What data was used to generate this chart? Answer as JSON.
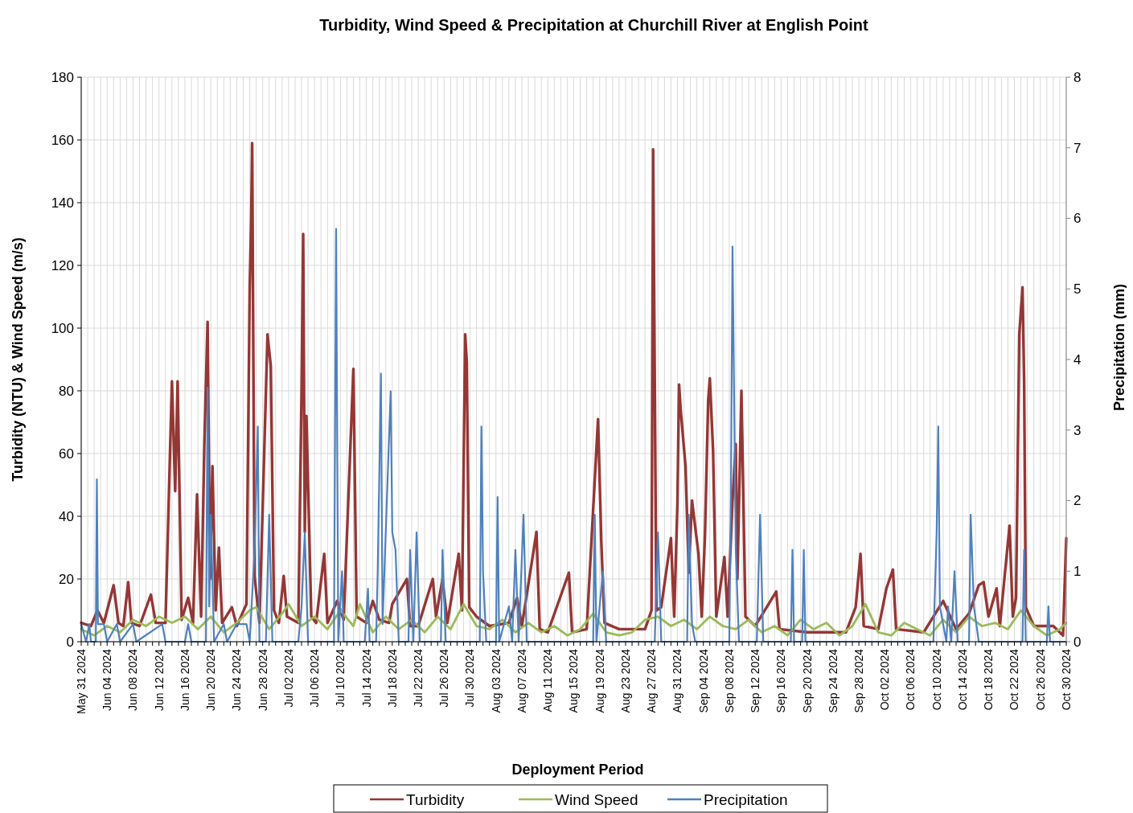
{
  "chart_data": {
    "type": "line",
    "title": "Turbidity, Wind Speed & Precipitation at Churchill River at English Point",
    "xlabel": "Deployment Period",
    "ylabel": "Turbidity (NTU) & Wind Speed (m/s)",
    "y2label": "Precipitation (mm)",
    "xlim": [
      "2024-05-31",
      "2024-10-30"
    ],
    "ylim": [
      0,
      180
    ],
    "yticks": [
      0,
      20,
      40,
      60,
      80,
      100,
      120,
      140,
      160,
      180
    ],
    "y2lim": [
      0,
      8
    ],
    "y2ticks": [
      0,
      1,
      2,
      3,
      4,
      5,
      6,
      7,
      8
    ],
    "grid": true,
    "legend": "bottom",
    "marker": "none",
    "line_style": "solid",
    "xticks": [
      {
        "value": "2024-05-31",
        "label": "May 31 2024"
      },
      {
        "value": "2024-06-01",
        "label": null
      },
      {
        "value": "2024-06-02",
        "label": null
      },
      {
        "value": "2024-06-03",
        "label": null
      },
      {
        "value": "2024-06-04",
        "label": "Jun 04 2024"
      },
      {
        "value": "2024-06-05",
        "label": null
      },
      {
        "value": "2024-06-06",
        "label": null
      },
      {
        "value": "2024-06-07",
        "label": null
      },
      {
        "value": "2024-06-08",
        "label": "Jun 08 2024"
      },
      {
        "value": "2024-06-09",
        "label": null
      },
      {
        "value": "2024-06-10",
        "label": null
      },
      {
        "value": "2024-06-11",
        "label": null
      },
      {
        "value": "2024-06-12",
        "label": "Jun 12 2024"
      },
      {
        "value": "2024-06-13",
        "label": null
      },
      {
        "value": "2024-06-14",
        "label": null
      },
      {
        "value": "2024-06-15",
        "label": null
      },
      {
        "value": "2024-06-16",
        "label": "Jun 16 2024"
      },
      {
        "value": "2024-06-17",
        "label": null
      },
      {
        "value": "2024-06-18",
        "label": null
      },
      {
        "value": "2024-06-19",
        "label": null
      },
      {
        "value": "2024-06-20",
        "label": "Jun 20 2024"
      },
      {
        "value": "2024-06-21",
        "label": null
      },
      {
        "value": "2024-06-22",
        "label": null
      },
      {
        "value": "2024-06-23",
        "label": null
      },
      {
        "value": "2024-06-24",
        "label": "Jun 24 2024"
      },
      {
        "value": "2024-06-25",
        "label": null
      },
      {
        "value": "2024-06-26",
        "label": null
      },
      {
        "value": "2024-06-27",
        "label": null
      },
      {
        "value": "2024-06-28",
        "label": "Jun 28 2024"
      },
      {
        "value": "2024-06-29",
        "label": null
      },
      {
        "value": "2024-06-30",
        "label": null
      },
      {
        "value": "2024-07-01",
        "label": null
      },
      {
        "value": "2024-07-02",
        "label": "Jul 02 2024"
      },
      {
        "value": "2024-07-03",
        "label": null
      },
      {
        "value": "2024-07-04",
        "label": null
      },
      {
        "value": "2024-07-05",
        "label": null
      },
      {
        "value": "2024-07-06",
        "label": "Jul 06 2024"
      },
      {
        "value": "2024-07-07",
        "label": null
      },
      {
        "value": "2024-07-08",
        "label": null
      },
      {
        "value": "2024-07-09",
        "label": null
      },
      {
        "value": "2024-07-10",
        "label": "Jul 10 2024"
      },
      {
        "value": "2024-07-11",
        "label": null
      },
      {
        "value": "2024-07-12",
        "label": null
      },
      {
        "value": "2024-07-13",
        "label": null
      },
      {
        "value": "2024-07-14",
        "label": "Jul 14 2024"
      },
      {
        "value": "2024-07-15",
        "label": null
      },
      {
        "value": "2024-07-16",
        "label": null
      },
      {
        "value": "2024-07-17",
        "label": null
      },
      {
        "value": "2024-07-18",
        "label": "Jul 18 2024"
      },
      {
        "value": "2024-07-19",
        "label": null
      },
      {
        "value": "2024-07-20",
        "label": null
      },
      {
        "value": "2024-07-21",
        "label": null
      },
      {
        "value": "2024-07-22",
        "label": "Jul 22 2024"
      },
      {
        "value": "2024-07-23",
        "label": null
      },
      {
        "value": "2024-07-24",
        "label": null
      },
      {
        "value": "2024-07-25",
        "label": null
      },
      {
        "value": "2024-07-26",
        "label": "Jul 26 2024"
      },
      {
        "value": "2024-07-27",
        "label": null
      },
      {
        "value": "2024-07-28",
        "label": null
      },
      {
        "value": "2024-07-29",
        "label": null
      },
      {
        "value": "2024-07-30",
        "label": "Jul 30 2024"
      },
      {
        "value": "2024-07-31",
        "label": null
      },
      {
        "value": "2024-08-01",
        "label": null
      },
      {
        "value": "2024-08-02",
        "label": null
      },
      {
        "value": "2024-08-03",
        "label": "Aug 03 2024"
      },
      {
        "value": "2024-08-04",
        "label": null
      },
      {
        "value": "2024-08-05",
        "label": null
      },
      {
        "value": "2024-08-06",
        "label": null
      },
      {
        "value": "2024-08-07",
        "label": "Aug 07 2024"
      },
      {
        "value": "2024-08-08",
        "label": null
      },
      {
        "value": "2024-08-09",
        "label": null
      },
      {
        "value": "2024-08-10",
        "label": null
      },
      {
        "value": "2024-08-11",
        "label": "Aug 11 2024"
      },
      {
        "value": "2024-08-12",
        "label": null
      },
      {
        "value": "2024-08-13",
        "label": null
      },
      {
        "value": "2024-08-14",
        "label": null
      },
      {
        "value": "2024-08-15",
        "label": "Aug 15 2024"
      },
      {
        "value": "2024-08-16",
        "label": null
      },
      {
        "value": "2024-08-17",
        "label": null
      },
      {
        "value": "2024-08-18",
        "label": null
      },
      {
        "value": "2024-08-19",
        "label": "Aug 19 2024"
      },
      {
        "value": "2024-08-20",
        "label": null
      },
      {
        "value": "2024-08-21",
        "label": null
      },
      {
        "value": "2024-08-22",
        "label": null
      },
      {
        "value": "2024-08-23",
        "label": "Aug 23 2024"
      },
      {
        "value": "2024-08-24",
        "label": null
      },
      {
        "value": "2024-08-25",
        "label": null
      },
      {
        "value": "2024-08-26",
        "label": null
      },
      {
        "value": "2024-08-27",
        "label": "Aug 27 2024"
      },
      {
        "value": "2024-08-28",
        "label": null
      },
      {
        "value": "2024-08-29",
        "label": null
      },
      {
        "value": "2024-08-30",
        "label": null
      },
      {
        "value": "2024-08-31",
        "label": "Aug 31 2024"
      },
      {
        "value": "2024-09-01",
        "label": null
      },
      {
        "value": "2024-09-02",
        "label": null
      },
      {
        "value": "2024-09-03",
        "label": null
      },
      {
        "value": "2024-09-04",
        "label": "Sep 04 2024"
      },
      {
        "value": "2024-09-05",
        "label": null
      },
      {
        "value": "2024-09-06",
        "label": null
      },
      {
        "value": "2024-09-07",
        "label": null
      },
      {
        "value": "2024-09-08",
        "label": "Sep 08 2024"
      },
      {
        "value": "2024-09-09",
        "label": null
      },
      {
        "value": "2024-09-10",
        "label": null
      },
      {
        "value": "2024-09-11",
        "label": null
      },
      {
        "value": "2024-09-12",
        "label": "Sep 12 2024"
      },
      {
        "value": "2024-09-13",
        "label": null
      },
      {
        "value": "2024-09-14",
        "label": null
      },
      {
        "value": "2024-09-15",
        "label": null
      },
      {
        "value": "2024-09-16",
        "label": "Sep 16 2024"
      },
      {
        "value": "2024-09-17",
        "label": null
      },
      {
        "value": "2024-09-18",
        "label": null
      },
      {
        "value": "2024-09-19",
        "label": null
      },
      {
        "value": "2024-09-20",
        "label": "Sep 20 2024"
      },
      {
        "value": "2024-09-21",
        "label": null
      },
      {
        "value": "2024-09-22",
        "label": null
      },
      {
        "value": "2024-09-23",
        "label": null
      },
      {
        "value": "2024-09-24",
        "label": "Sep 24 2024"
      },
      {
        "value": "2024-09-25",
        "label": null
      },
      {
        "value": "2024-09-26",
        "label": null
      },
      {
        "value": "2024-09-27",
        "label": null
      },
      {
        "value": "2024-09-28",
        "label": "Sep 28 2024"
      },
      {
        "value": "2024-09-29",
        "label": null
      },
      {
        "value": "2024-09-30",
        "label": null
      },
      {
        "value": "2024-10-01",
        "label": null
      },
      {
        "value": "2024-10-02",
        "label": "Oct 02 2024"
      },
      {
        "value": "2024-10-03",
        "label": null
      },
      {
        "value": "2024-10-04",
        "label": null
      },
      {
        "value": "2024-10-05",
        "label": null
      },
      {
        "value": "2024-10-06",
        "label": "Oct 06 2024"
      },
      {
        "value": "2024-10-07",
        "label": null
      },
      {
        "value": "2024-10-08",
        "label": null
      },
      {
        "value": "2024-10-09",
        "label": null
      },
      {
        "value": "2024-10-10",
        "label": "Oct 10 2024"
      },
      {
        "value": "2024-10-11",
        "label": null
      },
      {
        "value": "2024-10-12",
        "label": null
      },
      {
        "value": "2024-10-13",
        "label": null
      },
      {
        "value": "2024-10-14",
        "label": "Oct 14 2024"
      },
      {
        "value": "2024-10-15",
        "label": null
      },
      {
        "value": "2024-10-16",
        "label": null
      },
      {
        "value": "2024-10-17",
        "label": null
      },
      {
        "value": "2024-10-18",
        "label": "Oct 18 2024"
      },
      {
        "value": "2024-10-19",
        "label": null
      },
      {
        "value": "2024-10-20",
        "label": null
      },
      {
        "value": "2024-10-21",
        "label": null
      },
      {
        "value": "2024-10-22",
        "label": "Oct 22 2024"
      },
      {
        "value": "2024-10-23",
        "label": null
      },
      {
        "value": "2024-10-24",
        "label": null
      },
      {
        "value": "2024-10-25",
        "label": null
      },
      {
        "value": "2024-10-26",
        "label": "Oct 26 2024"
      },
      {
        "value": "2024-10-27",
        "label": null
      },
      {
        "value": "2024-10-28",
        "label": null
      },
      {
        "value": "2024-10-29",
        "label": null
      },
      {
        "value": "2024-10-30",
        "label": "Oct 30 2024"
      }
    ],
    "series": [
      {
        "name": "Turbidity",
        "color": "#953735",
        "x": [
          "2024-05-31T00:00",
          "2024-06-01T12:00",
          "2024-06-02T12:00",
          "2024-06-03T12:00",
          "2024-06-05T00:00",
          "2024-06-05T18:00",
          "2024-06-06T12:00",
          "2024-06-07T06:00",
          "2024-06-07T18:00",
          "2024-06-09T00:00",
          "2024-06-10T18:00",
          "2024-06-11T12:00",
          "2024-06-13T00:00",
          "2024-06-14T00:00",
          "2024-06-14T12:00",
          "2024-06-14T21:00",
          "2024-06-15T12:00",
          "2024-06-16T12:00",
          "2024-06-17T06:00",
          "2024-06-17T21:00",
          "2024-06-18T12:00",
          "2024-06-19T00:00",
          "2024-06-19T12:00",
          "2024-06-19T21:00",
          "2024-06-20T06:00",
          "2024-06-20T18:00",
          "2024-06-21T06:00",
          "2024-06-21T18:00",
          "2024-06-23T06:00",
          "2024-06-24T00:00",
          "2024-06-25T12:00",
          "2024-06-26T00:00",
          "2024-06-26T06:00",
          "2024-06-26T09:00",
          "2024-06-26T18:00",
          "2024-06-27T12:00",
          "2024-06-28T18:00",
          "2024-06-29T06:00",
          "2024-06-29T18:00",
          "2024-06-30T12:00",
          "2024-07-01T06:00",
          "2024-07-01T18:00",
          "2024-07-03T12:00",
          "2024-07-04T00:00",
          "2024-07-04T06:00",
          "2024-07-04T12:00",
          "2024-07-04T18:00",
          "2024-07-05T12:00",
          "2024-07-06T06:00",
          "2024-07-07T12:00",
          "2024-07-08T00:00",
          "2024-07-09T12:00",
          "2024-07-10T12:00",
          "2024-07-12T00:00",
          "2024-07-12T12:00",
          "2024-07-14T00:00",
          "2024-07-15T00:00",
          "2024-07-16T00:00",
          "2024-07-17T12:00",
          "2024-07-18T00:00",
          "2024-07-20T06:00",
          "2024-07-20T18:00",
          "2024-07-22T00:00",
          "2024-07-24T06:00",
          "2024-07-24T18:00",
          "2024-07-25T18:00",
          "2024-07-26T12:00",
          "2024-07-28T06:00",
          "2024-07-28T18:00",
          "2024-07-29T06:00",
          "2024-07-29T12:00",
          "2024-07-29T21:00",
          "2024-07-31T00:00",
          "2024-08-02T00:00",
          "2024-08-05T00:00",
          "2024-08-06T06:00",
          "2024-08-07T00:00",
          "2024-08-09T06:00",
          "2024-08-09T18:00",
          "2024-08-11T00:00",
          "2024-08-14T06:00",
          "2024-08-14T18:00",
          "2024-08-17T00:00",
          "2024-08-18T18:00",
          "2024-08-19T06:00",
          "2024-08-19T18:00",
          "2024-08-22T00:00",
          "2024-08-26T00:00",
          "2024-08-27T00:00",
          "2024-08-27T06:00",
          "2024-08-27T18:00",
          "2024-08-28T12:00",
          "2024-08-30T00:00",
          "2024-08-30T12:00",
          "2024-08-31T00:00",
          "2024-08-31T06:00",
          "2024-08-31T12:00",
          "2024-09-01T06:00",
          "2024-09-01T18:00",
          "2024-09-02T06:00",
          "2024-09-03T06:00",
          "2024-09-03T18:00",
          "2024-09-04T06:00",
          "2024-09-04T18:00",
          "2024-09-05T00:00",
          "2024-09-05T12:00",
          "2024-09-06T00:00",
          "2024-09-07T06:00",
          "2024-09-07T18:00",
          "2024-09-08T12:00",
          "2024-09-09T00:00",
          "2024-09-09T06:00",
          "2024-09-09T21:00",
          "2024-09-10T12:00",
          "2024-09-12T00:00",
          "2024-09-15T06:00",
          "2024-09-15T18:00",
          "2024-09-20T00:00",
          "2024-09-26T00:00",
          "2024-09-27T12:00",
          "2024-09-28T06:00",
          "2024-09-28T18:00",
          "2024-10-01T00:00",
          "2024-10-02T06:00",
          "2024-10-03T06:00",
          "2024-10-03T18:00",
          "2024-10-08T00:00",
          "2024-10-11T00:00",
          "2024-10-13T00:00",
          "2024-10-15T00:00",
          "2024-10-16T12:00",
          "2024-10-17T06:00",
          "2024-10-18T00:00",
          "2024-10-19T06:00",
          "2024-10-19T18:00",
          "2024-10-21T06:00",
          "2024-10-21T18:00",
          "2024-10-22T06:00",
          "2024-10-22T18:00",
          "2024-10-23T06:00",
          "2024-10-23T12:00",
          "2024-10-23T18:00",
          "2024-10-25T00:00",
          "2024-10-28T00:00",
          "2024-10-29T12:00",
          "2024-10-30T00:00"
        ],
        "values": [
          6,
          5,
          10,
          6,
          18,
          6,
          5,
          19,
          6,
          5,
          15,
          6,
          6,
          83,
          48,
          83,
          7,
          14,
          6,
          47,
          8,
          63,
          102,
          20,
          56,
          10,
          30,
          6,
          11,
          5,
          12,
          113,
          137,
          159,
          21,
          6,
          98,
          88,
          10,
          6,
          21,
          8,
          6,
          80,
          130,
          35,
          72,
          8,
          6,
          28,
          6,
          13,
          7,
          87,
          8,
          6,
          13,
          7,
          6,
          12,
          20,
          5,
          5,
          20,
          8,
          20,
          6,
          28,
          10,
          98,
          89,
          11,
          8,
          5,
          6,
          14,
          5,
          35,
          4,
          3,
          22,
          3,
          4,
          71,
          32,
          6,
          4,
          4,
          10,
          157,
          10,
          11,
          33,
          8,
          44,
          82,
          74,
          56,
          22,
          45,
          28,
          8,
          34,
          77,
          84,
          61,
          8,
          27,
          8,
          45,
          63,
          20,
          80,
          8,
          5,
          16,
          4,
          3,
          3,
          11,
          28,
          5,
          4,
          17,
          23,
          4,
          3,
          13,
          4,
          9,
          18,
          19,
          8,
          17,
          5,
          37,
          8,
          14,
          98,
          113,
          83,
          11,
          5,
          5,
          2,
          33
        ]
      },
      {
        "name": "Wind Speed",
        "color": "#9bbb59",
        "x": [
          "2024-05-31",
          "2024-06-02",
          "2024-06-04",
          "2024-06-06",
          "2024-06-08",
          "2024-06-10",
          "2024-06-12",
          "2024-06-14",
          "2024-06-16",
          "2024-06-18",
          "2024-06-20",
          "2024-06-22",
          "2024-06-24",
          "2024-06-26",
          "2024-06-27",
          "2024-06-29",
          "2024-07-01",
          "2024-07-02",
          "2024-07-04",
          "2024-07-06",
          "2024-07-08",
          "2024-07-10",
          "2024-07-12",
          "2024-07-13",
          "2024-07-15",
          "2024-07-17",
          "2024-07-19",
          "2024-07-21",
          "2024-07-23",
          "2024-07-25",
          "2024-07-27",
          "2024-07-29",
          "2024-07-31",
          "2024-08-02",
          "2024-08-04",
          "2024-08-06",
          "2024-08-08",
          "2024-08-10",
          "2024-08-12",
          "2024-08-14",
          "2024-08-16",
          "2024-08-18",
          "2024-08-20",
          "2024-08-22",
          "2024-08-24",
          "2024-08-26",
          "2024-08-28",
          "2024-08-30",
          "2024-09-01",
          "2024-09-03",
          "2024-09-05",
          "2024-09-07",
          "2024-09-09",
          "2024-09-11",
          "2024-09-13",
          "2024-09-15",
          "2024-09-17",
          "2024-09-19",
          "2024-09-21",
          "2024-09-23",
          "2024-09-25",
          "2024-09-27",
          "2024-09-29",
          "2024-10-01",
          "2024-10-03",
          "2024-10-05",
          "2024-10-07",
          "2024-10-09",
          "2024-10-11",
          "2024-10-13",
          "2024-10-15",
          "2024-10-17",
          "2024-10-19",
          "2024-10-21",
          "2024-10-23",
          "2024-10-25",
          "2024-10-27",
          "2024-10-29",
          "2024-10-30"
        ],
        "values": [
          4,
          2,
          5,
          3,
          7,
          5,
          8,
          6,
          8,
          4,
          8,
          3,
          6,
          10,
          11,
          4,
          9,
          12,
          5,
          8,
          4,
          10,
          5,
          12,
          3,
          8,
          4,
          7,
          3,
          8,
          4,
          12,
          5,
          4,
          7,
          3,
          6,
          3,
          5,
          2,
          4,
          9,
          3,
          2,
          3,
          7,
          8,
          5,
          7,
          4,
          8,
          5,
          4,
          7,
          3,
          5,
          2,
          7,
          4,
          6,
          2,
          5,
          12,
          3,
          2,
          6,
          4,
          2,
          7,
          3,
          8,
          5,
          6,
          4,
          10,
          5,
          2,
          4,
          6
        ]
      },
      {
        "name": "Precipitation",
        "color": "#4f81bd",
        "axis": "y2",
        "x": [
          "2024-05-31T00:00",
          "2024-05-31T18:00",
          "2024-06-01T06:00",
          "2024-06-01T12:00",
          "2024-06-02T06:00",
          "2024-06-02T10:00",
          "2024-06-02T14:00",
          "2024-06-03T12:00",
          "2024-06-04T00:00",
          "2024-06-05T12:00",
          "2024-06-06T00:00",
          "2024-06-08T00:00",
          "2024-06-08T12:00",
          "2024-06-12T12:00",
          "2024-06-13T00:00",
          "2024-06-16T00:00",
          "2024-06-16T12:00",
          "2024-06-17T00:00",
          "2024-06-19T06:00",
          "2024-06-19T12:00",
          "2024-06-19T18:00",
          "2024-06-20T00:00",
          "2024-06-20T12:00",
          "2024-06-22T00:00",
          "2024-06-22T12:00",
          "2024-06-24T00:00",
          "2024-06-25T12:00",
          "2024-06-26T00:00",
          "2024-06-26T18:00",
          "2024-06-27T06:00",
          "2024-06-27T12:00",
          "2024-06-28T12:00",
          "2024-06-29T00:00",
          "2024-06-29T12:00",
          "2024-07-03T12:00",
          "2024-07-04T00:00",
          "2024-07-04T12:00",
          "2024-07-05T00:00",
          "2024-07-09T00:00",
          "2024-07-09T08:00",
          "2024-07-09T16:00",
          "2024-07-10T06:00",
          "2024-07-10T12:00",
          "2024-07-13T18:00",
          "2024-07-14T06:00",
          "2024-07-14T12:00",
          "2024-07-15T12:00",
          "2024-07-15T18:00",
          "2024-07-16T06:00",
          "2024-07-16T12:00",
          "2024-07-17T18:00",
          "2024-07-18T00:00",
          "2024-07-18T12:00",
          "2024-07-19T00:00",
          "2024-07-20T12:00",
          "2024-07-20T18:00",
          "2024-07-21T06:00",
          "2024-07-21T18:00",
          "2024-07-22T06:00",
          "2024-07-25T12:00",
          "2024-07-25T18:00",
          "2024-07-26T06:00",
          "2024-07-31T12:00",
          "2024-07-31T18:00",
          "2024-08-01T00:00",
          "2024-08-01T12:00",
          "2024-08-03T00:00",
          "2024-08-03T06:00",
          "2024-08-03T12:00",
          "2024-08-05T00:00",
          "2024-08-05T12:00",
          "2024-08-06T00:00",
          "2024-08-06T12:00",
          "2024-08-07T06:00",
          "2024-08-07T18:00",
          "2024-08-18T00:00",
          "2024-08-18T06:00",
          "2024-08-18T12:00",
          "2024-08-19T12:00",
          "2024-08-20T00:00",
          "2024-08-27T12:00",
          "2024-08-28T00:00",
          "2024-08-28T12:00",
          "2024-09-01T12:00",
          "2024-09-01T18:00",
          "2024-09-02T06:00",
          "2024-09-02T18:00",
          "2024-09-08T00:00",
          "2024-09-08T06:00",
          "2024-09-08T12:00",
          "2024-09-09T00:00",
          "2024-09-09T12:00",
          "2024-09-12T06:00",
          "2024-09-12T18:00",
          "2024-09-13T06:00",
          "2024-09-17T12:00",
          "2024-09-17T18:00",
          "2024-09-18T00:00",
          "2024-09-19T06:00",
          "2024-09-19T12:00",
          "2024-09-19T18:00",
          "2024-10-09T12:00",
          "2024-10-10T00:00",
          "2024-10-10T06:00",
          "2024-10-10T12:00",
          "2024-10-11T12:00",
          "2024-10-11T18:00",
          "2024-10-12T06:00",
          "2024-10-12T18:00",
          "2024-10-13T06:00",
          "2024-10-15T00:00",
          "2024-10-15T06:00",
          "2024-10-15T18:00",
          "2024-10-16T12:00",
          "2024-10-23T06:00",
          "2024-10-23T12:00",
          "2024-10-23T18:00",
          "2024-10-27T00:00",
          "2024-10-27T06:00",
          "2024-10-27T12:00",
          "2024-10-30T00:00"
        ],
        "values": [
          0.25,
          0,
          0.25,
          0,
          0,
          2.3,
          0.25,
          0.25,
          0,
          0.25,
          0,
          0.25,
          0,
          0.25,
          0,
          0,
          0.25,
          0,
          0,
          3.6,
          0.5,
          1.8,
          0,
          0.25,
          0,
          0.25,
          0.25,
          0,
          1.3,
          3.05,
          0,
          0,
          1.8,
          0,
          0,
          0.5,
          1.55,
          0,
          0,
          5.85,
          0,
          1,
          0,
          0,
          0.75,
          0,
          0,
          1,
          3.8,
          0.25,
          3.55,
          1.55,
          1.3,
          0,
          0,
          1.3,
          0,
          1.55,
          0,
          0,
          1.3,
          0,
          0,
          3.05,
          1,
          0,
          0,
          2.05,
          0,
          0.5,
          0,
          1.3,
          0,
          1.8,
          0,
          0,
          1.8,
          0,
          1,
          0,
          0,
          1.55,
          0,
          0,
          1.8,
          0.25,
          0,
          0,
          2.05,
          5.6,
          1.3,
          0,
          0,
          1.8,
          0,
          0,
          1.3,
          0,
          0,
          1.3,
          0,
          0,
          1.55,
          3.05,
          0.5,
          0,
          0.5,
          0,
          1,
          0,
          0,
          1.8,
          0.5,
          0,
          0,
          1.3,
          0,
          0,
          0.5,
          0,
          0
        ]
      }
    ]
  }
}
